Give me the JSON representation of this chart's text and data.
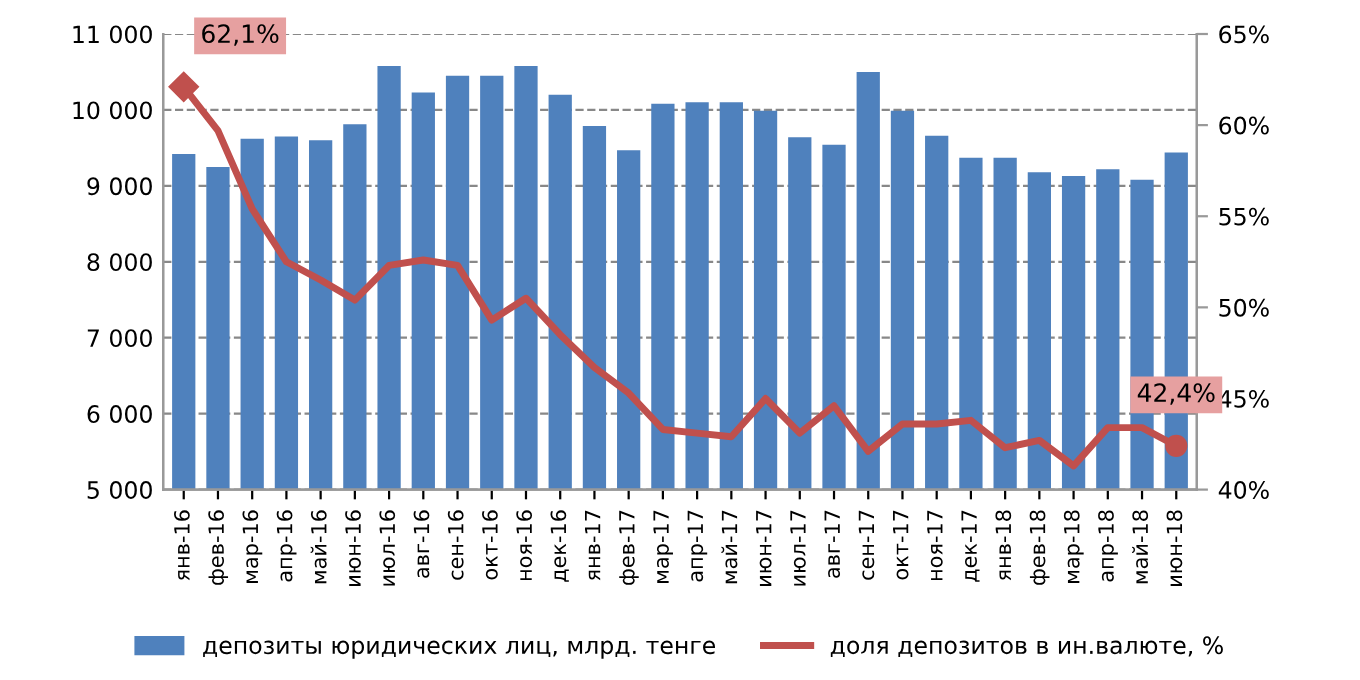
{
  "chart_data": {
    "type": "bar",
    "categories": [
      "янв-16",
      "фев-16",
      "мар-16",
      "апр-16",
      "май-16",
      "июн-16",
      "июл-16",
      "авг-16",
      "сен-16",
      "окт-16",
      "ноя-16",
      "дек-16",
      "янв-17",
      "фев-17",
      "мар-17",
      "апр-17",
      "май-17",
      "июн-17",
      "июл-17",
      "авг-17",
      "сен-17",
      "окт-17",
      "ноя-17",
      "дек-17",
      "янв-18",
      "фев-18",
      "мар-18",
      "апр-18",
      "май-18",
      "июн-18"
    ],
    "series": [
      {
        "name": "депозиты юридических лиц, млрд. тенге",
        "color": "#4f81bd",
        "values": [
          9420,
          9250,
          9620,
          9650,
          9600,
          9810,
          10580,
          10230,
          10450,
          10450,
          10580,
          10200,
          9790,
          9470,
          10080,
          10100,
          10100,
          9990,
          9640,
          9540,
          10500,
          9990,
          9660,
          9370,
          9370,
          9180,
          9130,
          9220,
          9080,
          9440
        ]
      },
      {
        "name": "доля депозитов в ин.валюте, %",
        "type": "line",
        "axis": "y2",
        "color": "#c0504d",
        "values": [
          62.1,
          59.7,
          55.4,
          52.5,
          51.5,
          50.4,
          52.3,
          52.6,
          52.3,
          49.3,
          50.5,
          48.5,
          46.7,
          45.3,
          43.3,
          43.1,
          42.9,
          45.0,
          43.1,
          44.6,
          42.1,
          43.6,
          43.6,
          43.8,
          42.3,
          42.7,
          41.3,
          43.4,
          43.4,
          42.4
        ],
        "value_labels": [
          "62,1%",
          null,
          null,
          null,
          null,
          null,
          null,
          null,
          null,
          null,
          null,
          null,
          null,
          null,
          null,
          null,
          null,
          null,
          null,
          null,
          null,
          null,
          null,
          null,
          null,
          null,
          null,
          null,
          null,
          "42,4%"
        ]
      }
    ],
    "ylim": [
      5000,
      11000
    ],
    "yticks": [
      {
        "value": 5000,
        "label": "5 000"
      },
      {
        "value": 6000,
        "label": "6 000"
      },
      {
        "value": 7000,
        "label": "7 000"
      },
      {
        "value": 8000,
        "label": "8 000"
      },
      {
        "value": 9000,
        "label": "9 000"
      },
      {
        "value": 10000,
        "label": "10 000"
      },
      {
        "value": 11000,
        "label": "11 000"
      }
    ],
    "y2lim": [
      40,
      65
    ],
    "y2ticks": [
      {
        "value": 40,
        "label": "40%"
      },
      {
        "value": 45,
        "label": "45%"
      },
      {
        "value": 50,
        "label": "50%"
      },
      {
        "value": 55,
        "label": "55%"
      },
      {
        "value": 60,
        "label": "60%"
      },
      {
        "value": 65,
        "label": "65%"
      }
    ],
    "grid": "y",
    "legend": "bottom",
    "line_style": "solid"
  }
}
